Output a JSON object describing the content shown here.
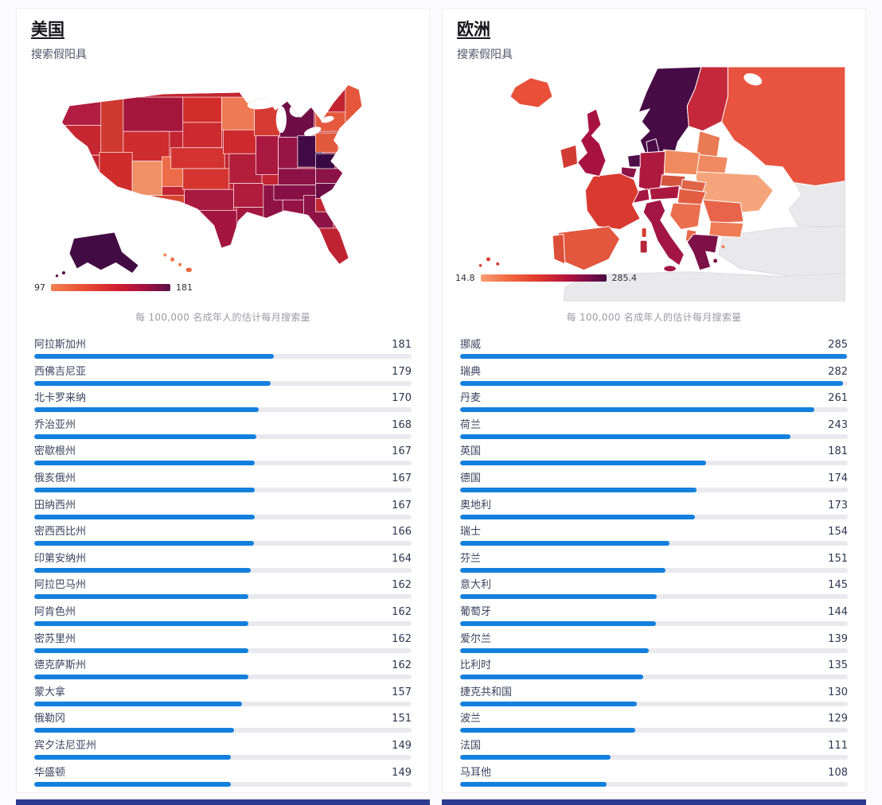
{
  "footer": {
    "color": "#2c3b90"
  },
  "chart_data": [
    {
      "type": "bar",
      "region": "美国",
      "subtitle": "搜索假阳具",
      "caption": "每 100,000 名成年人的估计每月搜索量",
      "map": {
        "kind": "choropleth-usa",
        "legend_min": "97",
        "legend_max": "181",
        "palette_low": "#f3814f",
        "palette_high": "#4a0c44"
      },
      "bar_color": "#1480dd",
      "bar_scale_max": 285.4,
      "categories": [
        "阿拉斯加州",
        "西佛吉尼亚",
        "北卡罗来纳",
        "乔治亚州",
        "密歇根州",
        "俄亥俄州",
        "田纳西州",
        "密西西比州",
        "印第安纳州",
        "阿拉巴马州",
        "阿肯色州",
        "密苏里州",
        "德克萨斯州",
        "蒙大拿",
        "俄勒冈",
        "宾夕法尼亚州",
        "华盛顿"
      ],
      "values": [
        181,
        179,
        170,
        168,
        167,
        167,
        167,
        166,
        164,
        162,
        162,
        162,
        162,
        157,
        151,
        149,
        149
      ]
    },
    {
      "type": "bar",
      "region": "欧洲",
      "subtitle": "搜索假阳具",
      "caption": "每 100,000 名成年人的估计每月搜索量",
      "map": {
        "kind": "choropleth-europe",
        "legend_min": "14.8",
        "legend_max": "285.4",
        "palette_low": "#f79e74",
        "palette_high": "#4a0c44"
      },
      "bar_color": "#1480dd",
      "bar_scale_max": 285.4,
      "categories": [
        "挪威",
        "瑞典",
        "丹麦",
        "荷兰",
        "英国",
        "德国",
        "奥地利",
        "瑞士",
        "芬兰",
        "意大利",
        "葡萄牙",
        "爱尔兰",
        "比利时",
        "捷克共和国",
        "波兰",
        "法国",
        "马耳他"
      ],
      "values": [
        285,
        282,
        261,
        243,
        181,
        174,
        173,
        154,
        151,
        145,
        144,
        139,
        135,
        130,
        129,
        111,
        108
      ]
    }
  ]
}
